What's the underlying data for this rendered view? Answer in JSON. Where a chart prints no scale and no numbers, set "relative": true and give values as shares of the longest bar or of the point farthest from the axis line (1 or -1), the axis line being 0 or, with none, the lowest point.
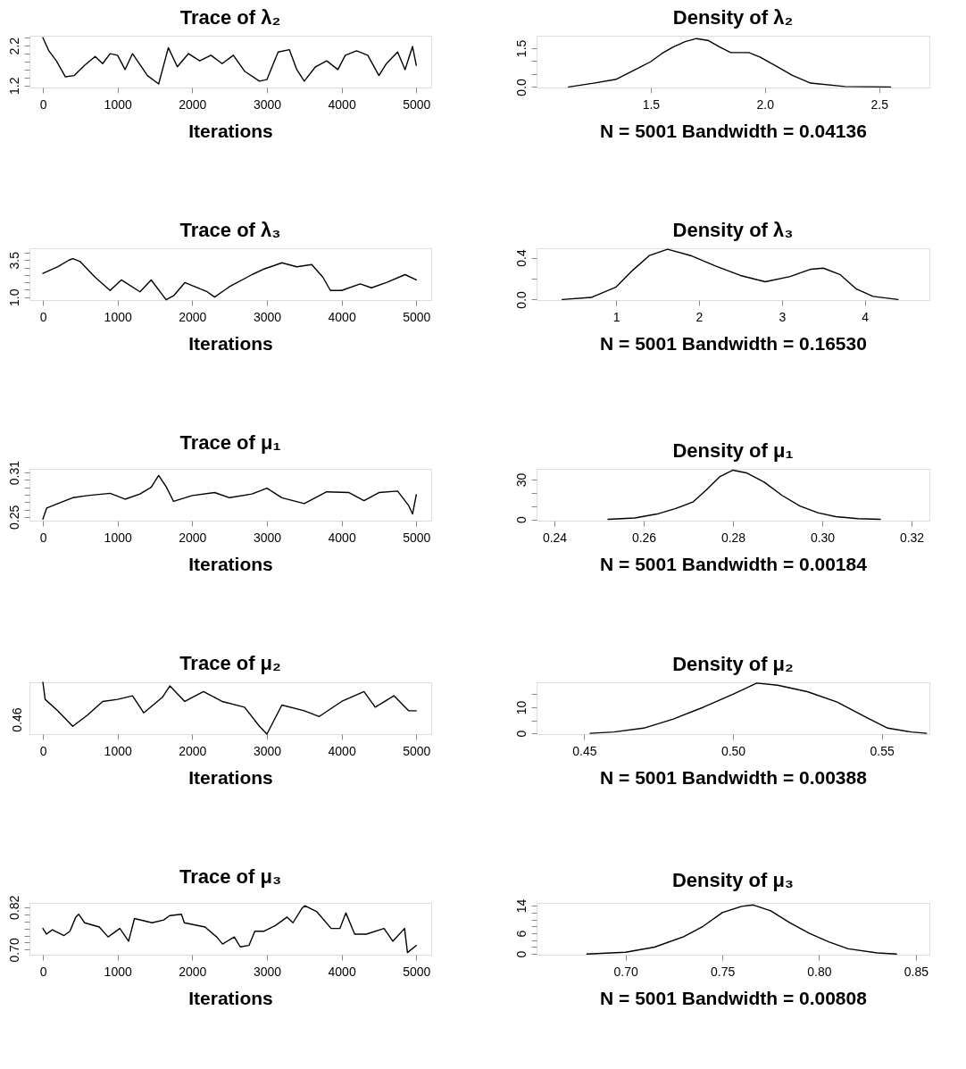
{
  "chart_data": [
    {
      "type": "line",
      "title": "Trace of λ₂",
      "xlabel": "Iterations",
      "xlim": [
        -180,
        5200
      ],
      "ylim": [
        1.15,
        2.45
      ],
      "xticks": [
        0,
        1000,
        2000,
        3000,
        4000,
        5000
      ],
      "yticks": [
        {
          "value": 1.2,
          "label": "1.2"
        },
        {
          "value": 1.4,
          "label": null
        },
        {
          "value": 1.6,
          "label": null
        },
        {
          "value": 1.8,
          "label": null
        },
        {
          "value": 2.0,
          "label": null
        },
        {
          "value": 2.2,
          "label": "2.2"
        },
        {
          "value": 2.4,
          "label": null
        }
      ],
      "series": [
        {
          "color": "#000000",
          "x": [
            0,
            80,
            180,
            300,
            420,
            560,
            700,
            800,
            900,
            1000,
            1100,
            1200,
            1400,
            1550,
            1680,
            1800,
            1950,
            2100,
            2250,
            2400,
            2550,
            2700,
            2900,
            3000,
            3150,
            3300,
            3400,
            3500,
            3650,
            3800,
            3950,
            4050,
            4200,
            4350,
            4500,
            4600,
            4750,
            4850,
            4950,
            5000
          ],
          "values": [
            2.4,
            2.07,
            1.82,
            1.42,
            1.45,
            1.71,
            1.93,
            1.75,
            2.0,
            1.96,
            1.6,
            2.0,
            1.45,
            1.24,
            2.15,
            1.67,
            2.0,
            1.82,
            1.96,
            1.75,
            1.96,
            1.56,
            1.31,
            1.35,
            2.04,
            2.1,
            1.6,
            1.31,
            1.67,
            1.82,
            1.6,
            1.96,
            2.07,
            1.96,
            1.45,
            1.75,
            2.04,
            1.6,
            2.18,
            1.71
          ]
        }
      ]
    },
    {
      "type": "line",
      "title": "Density of λ₂",
      "xlabel": "N = 5001 Bandwidth = 0.04136",
      "xlim": [
        1.0,
        2.72
      ],
      "ylim": [
        -0.02,
        1.98
      ],
      "xticks": [
        {
          "value": 1.5,
          "label": "1.5"
        },
        {
          "value": 2.0,
          "label": "2.0"
        },
        {
          "value": 2.5,
          "label": "2.5"
        }
      ],
      "yticks": [
        {
          "value": 0,
          "label": "0.0"
        },
        {
          "value": 0.5,
          "label": null
        },
        {
          "value": 1.0,
          "label": null
        },
        {
          "value": 1.5,
          "label": "1.5"
        }
      ],
      "series": [
        {
          "color": "#000000",
          "x": [
            1.14,
            1.25,
            1.35,
            1.45,
            1.5,
            1.55,
            1.6,
            1.65,
            1.7,
            1.75,
            1.8,
            1.85,
            1.93,
            1.98,
            2.05,
            2.12,
            2.2,
            2.35,
            2.55
          ],
          "values": [
            0,
            0.15,
            0.3,
            0.75,
            0.98,
            1.3,
            1.55,
            1.75,
            1.87,
            1.8,
            1.55,
            1.33,
            1.33,
            1.15,
            0.8,
            0.45,
            0.15,
            0.02,
            0
          ]
        }
      ]
    },
    {
      "type": "line",
      "title": "Trace of λ₃",
      "xlabel": "Iterations",
      "xlim": [
        -180,
        5200
      ],
      "ylim": [
        0.8,
        4.3
      ],
      "xticks": [
        0,
        1000,
        2000,
        3000,
        4000,
        5000
      ],
      "yticks": [
        {
          "value": 1.0,
          "label": "1.0"
        },
        {
          "value": 1.5,
          "label": null
        },
        {
          "value": 2.0,
          "label": null
        },
        {
          "value": 2.5,
          "label": null
        },
        {
          "value": 3.0,
          "label": null
        },
        {
          "value": 3.5,
          "label": "3.5"
        },
        {
          "value": 4.0,
          "label": null
        }
      ],
      "series": [
        {
          "color": "#000000",
          "x": [
            0,
            200,
            350,
            400,
            500,
            700,
            900,
            1050,
            1300,
            1450,
            1650,
            1750,
            1900,
            2200,
            2300,
            2500,
            2800,
            2950,
            3100,
            3200,
            3400,
            3600,
            3750,
            3850,
            4000,
            4250,
            4400,
            4600,
            4850,
            5000
          ],
          "values": [
            2.6,
            3.05,
            3.5,
            3.6,
            3.4,
            2.34,
            1.45,
            2.16,
            1.36,
            2.16,
            0.82,
            1.09,
            1.98,
            1.36,
            1.0,
            1.71,
            2.52,
            2.88,
            3.14,
            3.32,
            3.05,
            3.2,
            2.34,
            1.45,
            1.45,
            1.89,
            1.63,
            1.98,
            2.52,
            2.16
          ]
        }
      ]
    },
    {
      "type": "line",
      "title": "Density of λ₃",
      "xlabel": "N = 5001 Bandwidth = 0.16530",
      "xlim": [
        0.04,
        4.78
      ],
      "ylim": [
        -0.005,
        0.49
      ],
      "xticks": [
        1,
        2,
        3,
        4
      ],
      "yticks": [
        {
          "value": 0,
          "label": "0.0"
        },
        {
          "value": 0.2,
          "label": null
        },
        {
          "value": 0.4,
          "label": "0.4"
        }
      ],
      "series": [
        {
          "color": "#000000",
          "x": [
            0.35,
            0.7,
            1.0,
            1.2,
            1.4,
            1.62,
            1.9,
            2.2,
            2.5,
            2.8,
            3.1,
            3.35,
            3.5,
            3.7,
            3.9,
            4.1,
            4.4
          ],
          "values": [
            0,
            0.02,
            0.12,
            0.28,
            0.42,
            0.48,
            0.42,
            0.32,
            0.23,
            0.17,
            0.22,
            0.29,
            0.3,
            0.24,
            0.1,
            0.03,
            0
          ]
        }
      ]
    },
    {
      "type": "line",
      "title": "Trace of μ₁",
      "xlabel": "Iterations",
      "xlim": [
        -180,
        5200
      ],
      "ylim": [
        0.245,
        0.315
      ],
      "xticks": [
        0,
        1000,
        2000,
        3000,
        4000,
        5000
      ],
      "yticks": [
        {
          "value": 0.25,
          "label": "0.25"
        },
        {
          "value": 0.26,
          "label": null
        },
        {
          "value": 0.27,
          "label": null
        },
        {
          "value": 0.28,
          "label": null
        },
        {
          "value": 0.29,
          "label": null
        },
        {
          "value": 0.3,
          "label": null
        },
        {
          "value": 0.31,
          "label": "0.31"
        }
      ],
      "series": [
        {
          "color": "#000000",
          "x": [
            0,
            50,
            200,
            400,
            600,
            900,
            1100,
            1300,
            1450,
            1550,
            1650,
            1750,
            2000,
            2300,
            2500,
            2800,
            3000,
            3200,
            3500,
            3800,
            4100,
            4300,
            4500,
            4750,
            4900,
            4950,
            5000
          ],
          "values": [
            0.247,
            0.262,
            0.268,
            0.276,
            0.279,
            0.282,
            0.274,
            0.281,
            0.29,
            0.306,
            0.291,
            0.271,
            0.279,
            0.283,
            0.276,
            0.281,
            0.289,
            0.276,
            0.268,
            0.284,
            0.283,
            0.272,
            0.283,
            0.285,
            0.265,
            0.254,
            0.28
          ]
        }
      ]
    },
    {
      "type": "line",
      "title": "Density of μ₁",
      "xlabel": "N = 5001 Bandwidth = 0.00184",
      "xlim": [
        0.236,
        0.324
      ],
      "ylim": [
        -1,
        38
      ],
      "xticks": [
        0.24,
        0.26,
        0.28,
        {
          "value": 0.3,
          "label": "0.30"
        },
        0.32
      ],
      "yticks": [
        0,
        {
          "value": 10,
          "label": null
        },
        {
          "value": 20,
          "label": null
        },
        30
      ],
      "series": [
        {
          "color": "#000000",
          "x": [
            0.252,
            0.258,
            0.263,
            0.267,
            0.271,
            0.274,
            0.277,
            0.28,
            0.283,
            0.287,
            0.291,
            0.295,
            0.299,
            0.303,
            0.308,
            0.313
          ],
          "values": [
            0,
            1,
            4,
            8,
            13,
            22,
            32,
            37,
            35,
            28,
            18,
            10,
            5,
            2,
            0.5,
            0
          ]
        }
      ]
    },
    {
      "type": "line",
      "title": "Trace of μ₂",
      "xlabel": "Iterations",
      "relative": true,
      "annotations": [
        "0.46"
      ],
      "xlim": [
        -180,
        5200
      ],
      "xticks": [
        0,
        1000,
        2000,
        3000,
        4000,
        5000
      ],
      "series": [
        {
          "color": "#000000",
          "x": [
            0,
            30,
            200,
            400,
            600,
            800,
            1000,
            1200,
            1350,
            1600,
            1700,
            1900,
            2150,
            2400,
            2700,
            2900,
            3000,
            3200,
            3500,
            3700,
            4000,
            4300,
            4450,
            4700,
            4900,
            5000
          ],
          "values": [
            1,
            0.67,
            0.45,
            0.15,
            0.37,
            0.63,
            0.67,
            0.74,
            0.41,
            0.71,
            0.93,
            0.63,
            0.82,
            0.63,
            0.52,
            0.15,
            0,
            0.56,
            0.45,
            0.34,
            0.63,
            0.82,
            0.52,
            0.74,
            0.45,
            0.45
          ]
        }
      ]
    },
    {
      "type": "line",
      "title": "Density of μ₂",
      "xlabel": "N = 5001 Bandwidth = 0.00388",
      "xlim": [
        0.434,
        0.566
      ],
      "ylim": [
        -0.3,
        19.6
      ],
      "xticks": [
        0.45,
        {
          "value": 0.5,
          "label": "0.50"
        },
        0.55
      ],
      "yticks": [
        0,
        {
          "value": 5,
          "label": null
        },
        10,
        {
          "value": 15,
          "label": null
        }
      ],
      "series": [
        {
          "color": "#000000",
          "x": [
            0.452,
            0.46,
            0.47,
            0.48,
            0.49,
            0.5,
            0.508,
            0.515,
            0.525,
            0.535,
            0.545,
            0.552,
            0.56,
            0.565
          ],
          "values": [
            0,
            0.5,
            2,
            5.5,
            10,
            15,
            19.3,
            18.5,
            16,
            12,
            6,
            2,
            0.5,
            0
          ]
        }
      ]
    },
    {
      "type": "line",
      "title": "Trace of μ₃",
      "xlabel": "Iterations",
      "xlim": [
        -180,
        5200
      ],
      "ylim": [
        0.686,
        0.832
      ],
      "xticks": [
        0,
        1000,
        2000,
        3000,
        4000,
        5000
      ],
      "yticks": [
        {
          "value": 0.7,
          "label": "0.70"
        },
        {
          "value": 0.72,
          "label": null
        },
        {
          "value": 0.74,
          "label": null
        },
        {
          "value": 0.76,
          "label": null
        },
        {
          "value": 0.78,
          "label": null
        },
        {
          "value": 0.8,
          "label": null
        },
        {
          "value": 0.82,
          "label": "0.82"
        }
      ],
      "series": [
        {
          "color": "#000000",
          "x": [
            0,
            47,
            126,
            283,
            362,
            440,
            479,
            558,
            755,
            873,
            1030,
            1148,
            1226,
            1462,
            1619,
            1698,
            1855,
            1894,
            2170,
            2327,
            2406,
            2563,
            2642,
            2759,
            2838,
            2956,
            3113,
            3270,
            3349,
            3467,
            3506,
            3664,
            3860,
            3978,
            4057,
            4175,
            4332,
            4568,
            4686,
            4843,
            4882,
            5000
          ],
          "values": [
            0.76,
            0.744,
            0.756,
            0.74,
            0.752,
            0.792,
            0.8,
            0.776,
            0.764,
            0.736,
            0.76,
            0.724,
            0.788,
            0.776,
            0.784,
            0.796,
            0.8,
            0.776,
            0.764,
            0.736,
            0.716,
            0.736,
            0.708,
            0.712,
            0.752,
            0.752,
            0.768,
            0.792,
            0.776,
            0.816,
            0.824,
            0.808,
            0.76,
            0.76,
            0.804,
            0.744,
            0.744,
            0.76,
            0.724,
            0.76,
            0.692,
            0.712
          ]
        }
      ]
    },
    {
      "type": "line",
      "title": "Density of μ₃",
      "xlabel": "N = 5001 Bandwidth = 0.00808",
      "xlim": [
        0.654,
        0.857
      ],
      "ylim": [
        -0.2,
        14.8
      ],
      "xticks": [
        {
          "value": 0.7,
          "label": "0.70"
        },
        0.75,
        {
          "value": 0.8,
          "label": "0.80"
        },
        0.85
      ],
      "yticks": [
        0,
        {
          "value": 2,
          "label": null
        },
        {
          "value": 4,
          "label": null
        },
        6,
        {
          "value": 8,
          "label": null
        },
        {
          "value": 10,
          "label": null
        },
        {
          "value": 12,
          "label": null
        },
        14
      ],
      "series": [
        {
          "color": "#000000",
          "x": [
            0.68,
            0.7,
            0.715,
            0.73,
            0.74,
            0.75,
            0.76,
            0.766,
            0.775,
            0.785,
            0.795,
            0.805,
            0.815,
            0.83,
            0.84
          ],
          "values": [
            0,
            0.5,
            2,
            5,
            8,
            12,
            13.8,
            14.2,
            12.5,
            9,
            6,
            3.5,
            1.5,
            0.3,
            0
          ]
        }
      ]
    }
  ]
}
